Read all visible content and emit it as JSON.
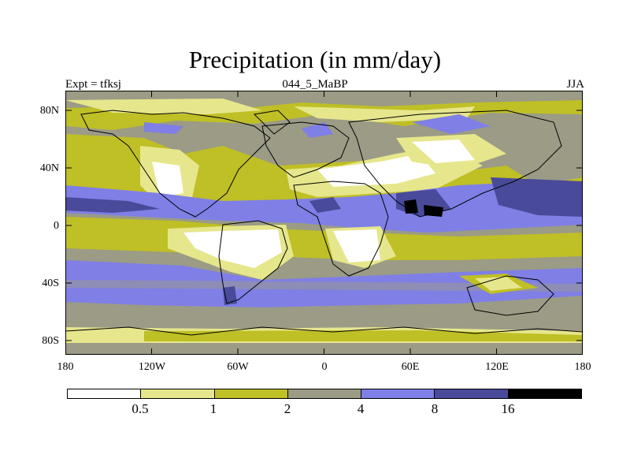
{
  "title": "Precipitation (in mm/day)",
  "subtitle_left": "Expt = tfksj",
  "subtitle_center": "044_5_MaBP",
  "subtitle_right": "JJA",
  "lat_labels": [
    "80N",
    "40N",
    "0",
    "40S",
    "80S"
  ],
  "lon_labels": [
    "180",
    "120W",
    "60W",
    "0",
    "60E",
    "120E",
    "180"
  ],
  "colorbar": {
    "levels": [
      "0.5",
      "1",
      "2",
      "4",
      "8",
      "16"
    ],
    "colors": [
      "#ffffff",
      "#e6e68c",
      "#bfbf26",
      "#9b9b86",
      "#7f7fe6",
      "#4a4a9a",
      "#000000"
    ]
  },
  "map_colors": {
    "very_dry": "#ffffff",
    "dry": "#e6e68c",
    "moderate": "#bfbf26",
    "gray": "#9b9b86",
    "wet": "#7f7fe6",
    "very_wet": "#4a4a9a",
    "extreme": "#000000"
  }
}
